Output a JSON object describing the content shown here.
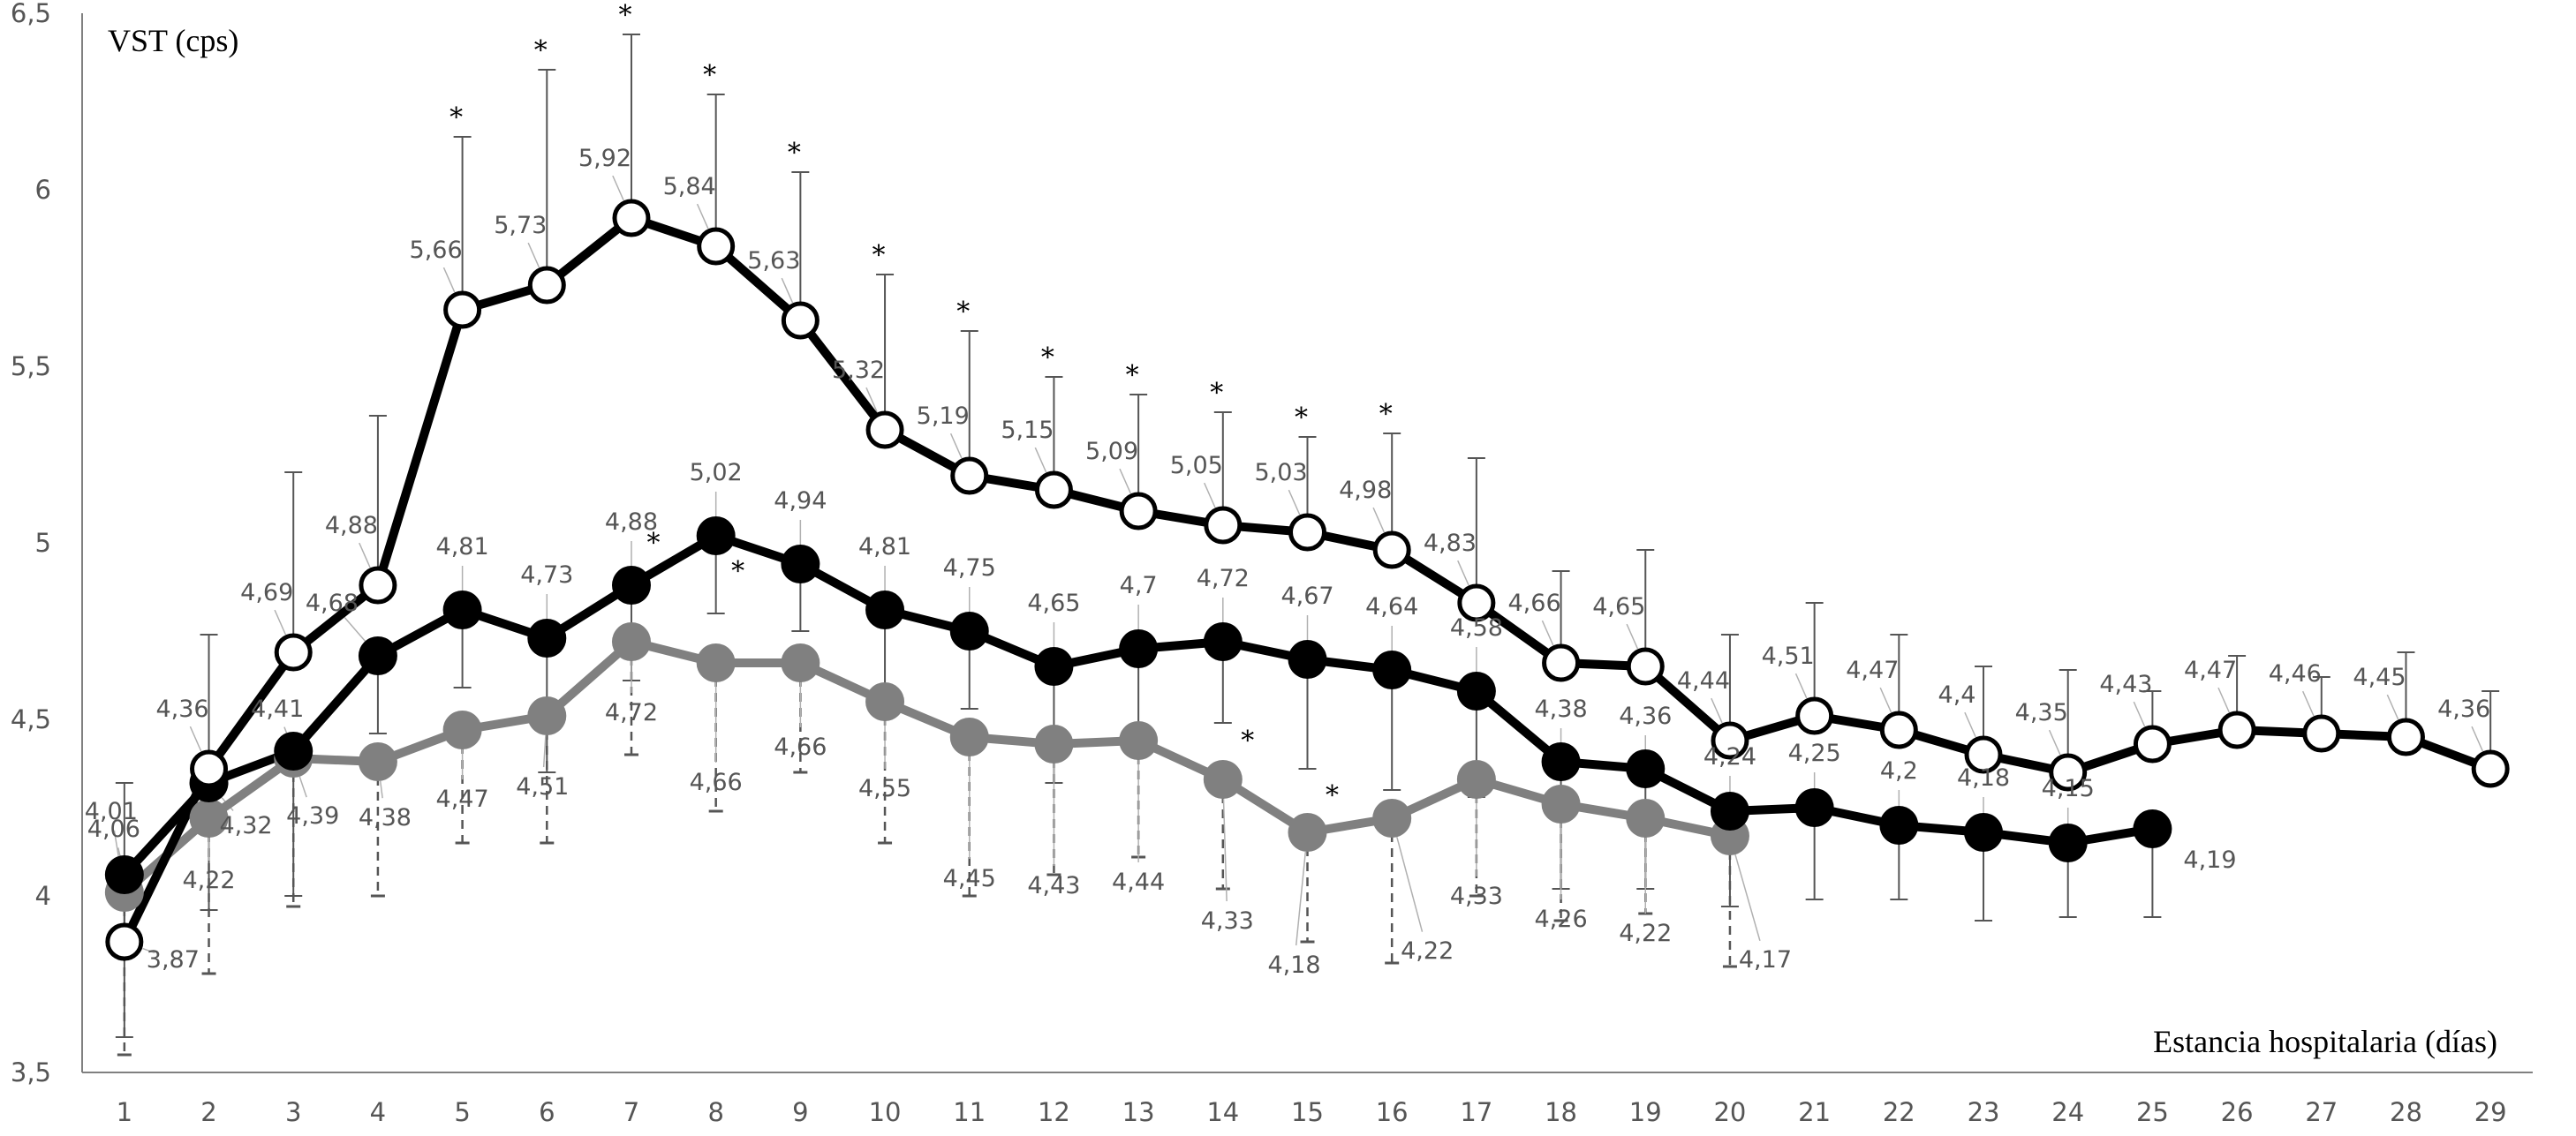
{
  "chart_data": {
    "type": "line",
    "title": "",
    "ylabel": "VST (cps)",
    "xlabel": "Estancia hospitalaria (días)",
    "ylim": [
      3.5,
      6.5
    ],
    "yticks": [
      "3,5",
      "4",
      "4,5",
      "5",
      "5,5",
      "6",
      "6,5"
    ],
    "ytick_values": [
      3.5,
      4,
      4.5,
      5,
      5.5,
      6,
      6.5
    ],
    "xticks": [
      "1",
      "2",
      "3",
      "4",
      "5",
      "6",
      "7",
      "8",
      "9",
      "10",
      "11",
      "12",
      "13",
      "14",
      "15",
      "16",
      "17",
      "18",
      "19",
      "20",
      "21",
      "22",
      "23",
      "24",
      "25",
      "26",
      "27",
      "28",
      "29"
    ],
    "grid": false,
    "legend": "none",
    "significance_marker": "*",
    "series": [
      {
        "style": "open-circle",
        "color": "#000000",
        "x": [
          1,
          2,
          3,
          4,
          5,
          6,
          7,
          8,
          9,
          10,
          11,
          12,
          13,
          14,
          15,
          16,
          17,
          18,
          19,
          20,
          21,
          22,
          23,
          24,
          25,
          26,
          27,
          28,
          29
        ],
        "values": [
          3.87,
          4.36,
          4.69,
          4.88,
          5.66,
          5.73,
          5.92,
          5.84,
          5.63,
          5.32,
          5.19,
          5.15,
          5.09,
          5.05,
          5.03,
          4.98,
          4.83,
          4.66,
          4.65,
          4.44,
          4.51,
          4.47,
          4.4,
          4.35,
          4.43,
          4.47,
          4.46,
          4.45,
          4.36
        ],
        "labels": [
          "3,87",
          "4,36",
          "4,69",
          "4,88",
          "5,66",
          "5,73",
          "5,92",
          "5,84",
          "5,63",
          "5,32",
          "5,19",
          "5,15",
          "5,09",
          "5,05",
          "5,03",
          "4,98",
          "4,83",
          "4,66",
          "4,65",
          "4,44",
          "4,51",
          "4,47",
          "4,4",
          "4,35",
          "4,43",
          "4,47",
          "4,46",
          "4,45",
          "4,36"
        ],
        "error_upper": [
          4.32,
          4.74,
          5.2,
          5.36,
          6.15,
          6.34,
          6.44,
          6.27,
          6.05,
          5.76,
          5.6,
          5.47,
          5.42,
          5.37,
          5.3,
          5.31,
          5.24,
          4.92,
          4.98,
          4.74,
          4.83,
          4.74,
          4.65,
          4.64,
          4.58,
          4.68,
          4.62,
          4.69,
          4.58
        ],
        "significant": [
          false,
          false,
          false,
          false,
          true,
          true,
          true,
          true,
          true,
          true,
          true,
          true,
          true,
          true,
          true,
          true,
          false,
          false,
          false,
          false,
          false,
          false,
          false,
          false,
          false,
          false,
          false,
          false,
          false
        ]
      },
      {
        "style": "filled-circle",
        "color": "#000000",
        "x": [
          1,
          2,
          3,
          4,
          5,
          6,
          7,
          8,
          9,
          10,
          11,
          12,
          13,
          14,
          15,
          16,
          17,
          18,
          19,
          20,
          21,
          22,
          23,
          24,
          25
        ],
        "values": [
          4.06,
          4.32,
          4.41,
          4.68,
          4.81,
          4.73,
          4.88,
          5.02,
          4.94,
          4.81,
          4.75,
          4.65,
          4.7,
          4.72,
          4.67,
          4.64,
          4.58,
          4.38,
          4.36,
          4.24,
          4.25,
          4.2,
          4.18,
          4.15,
          4.19
        ],
        "labels": [
          "4,06",
          "4,32",
          "4,41",
          "4,68",
          "4,81",
          "4,73",
          "4,88",
          "5,02",
          "4,94",
          "4,81",
          "4,75",
          "4,65",
          "4,7",
          "4,72",
          "4,67",
          "4,64",
          "4,58",
          "4,38",
          "4,36",
          "4,24",
          "4,25",
          "4,2",
          "4,18",
          "4,15",
          "4,19"
        ],
        "error_lower": [
          3.6,
          3.96,
          4.0,
          4.46,
          4.59,
          4.35,
          4.61,
          4.8,
          4.75,
          4.52,
          4.53,
          4.32,
          4.4,
          4.49,
          4.36,
          4.3,
          4.28,
          4.02,
          4.02,
          3.97,
          3.99,
          3.99,
          3.93,
          3.94,
          3.94
        ],
        "significant": [
          false,
          false,
          false,
          false,
          false,
          false,
          true,
          true,
          false,
          false,
          false,
          false,
          false,
          true,
          true,
          false,
          false,
          false,
          false,
          false,
          false,
          false,
          false,
          false,
          false
        ]
      },
      {
        "style": "grey-filled-circle",
        "color": "#808080",
        "x": [
          1,
          2,
          3,
          4,
          5,
          6,
          7,
          8,
          9,
          10,
          11,
          12,
          13,
          14,
          15,
          16,
          17,
          18,
          19,
          20
        ],
        "values": [
          4.01,
          4.22,
          4.39,
          4.38,
          4.47,
          4.51,
          4.72,
          4.66,
          4.66,
          4.55,
          4.45,
          4.43,
          4.44,
          4.33,
          4.18,
          4.22,
          4.33,
          4.26,
          4.22,
          4.17
        ],
        "labels": [
          "4,01",
          "4,22",
          "4,39",
          "4,38",
          "4,47",
          "4,51",
          "4,72",
          "4,66",
          "4,66",
          "4,55",
          "4,45",
          "4,43",
          "4,44",
          "4,33",
          "4,18",
          "4,22",
          "4,33",
          "4,26",
          "4,22",
          "4,17"
        ],
        "error_lower": [
          3.55,
          3.78,
          3.97,
          4.0,
          4.15,
          4.15,
          4.4,
          4.24,
          4.35,
          4.15,
          4.0,
          4.06,
          4.11,
          4.02,
          3.87,
          3.81,
          4.0,
          3.93,
          3.95,
          3.8
        ]
      }
    ]
  }
}
